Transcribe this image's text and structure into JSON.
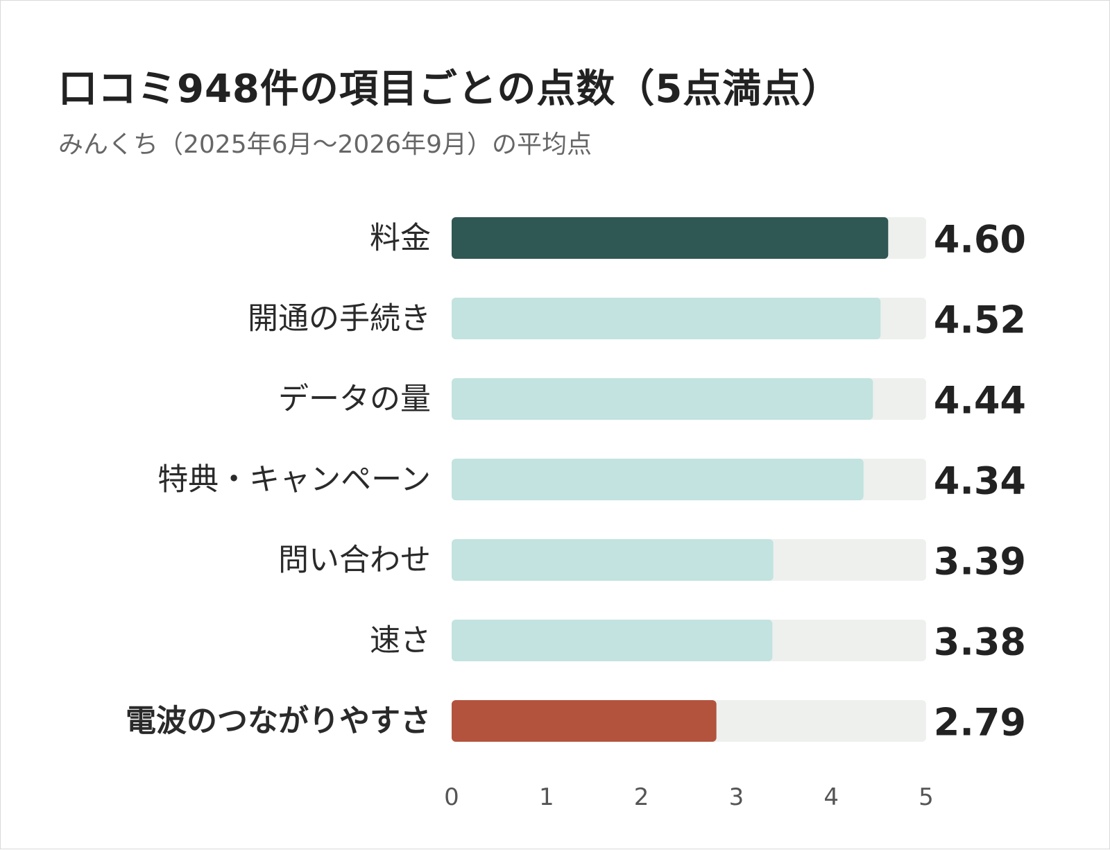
{
  "title": "口コミ948件の項目ごとの点数（5点満点）",
  "subtitle": "みんくち（2025年6月〜2026年9月）の平均点",
  "colors": {
    "top": "#2f5753",
    "bottom": "#b3533d",
    "default": "#c2e3e0",
    "track": "#eef0ee",
    "text": "#222222"
  },
  "chart_data": {
    "type": "bar",
    "orientation": "horizontal",
    "categories": [
      "料金",
      "開通の手続き",
      "データの量",
      "特典・キャンペーン",
      "問い合わせ",
      "速さ",
      "電波のつながりやすさ"
    ],
    "values": [
      4.6,
      4.52,
      4.44,
      4.34,
      3.39,
      3.38,
      2.79
    ],
    "value_labels": [
      "4.60",
      "4.52",
      "4.44",
      "4.34",
      "3.39",
      "3.38",
      "2.79"
    ],
    "highlight": [
      "top",
      "default",
      "default",
      "default",
      "default",
      "default",
      "bottom"
    ],
    "xlim": [
      0,
      5
    ],
    "xticks": [
      "0",
      "1",
      "2",
      "3",
      "4",
      "5"
    ],
    "grid": false
  }
}
